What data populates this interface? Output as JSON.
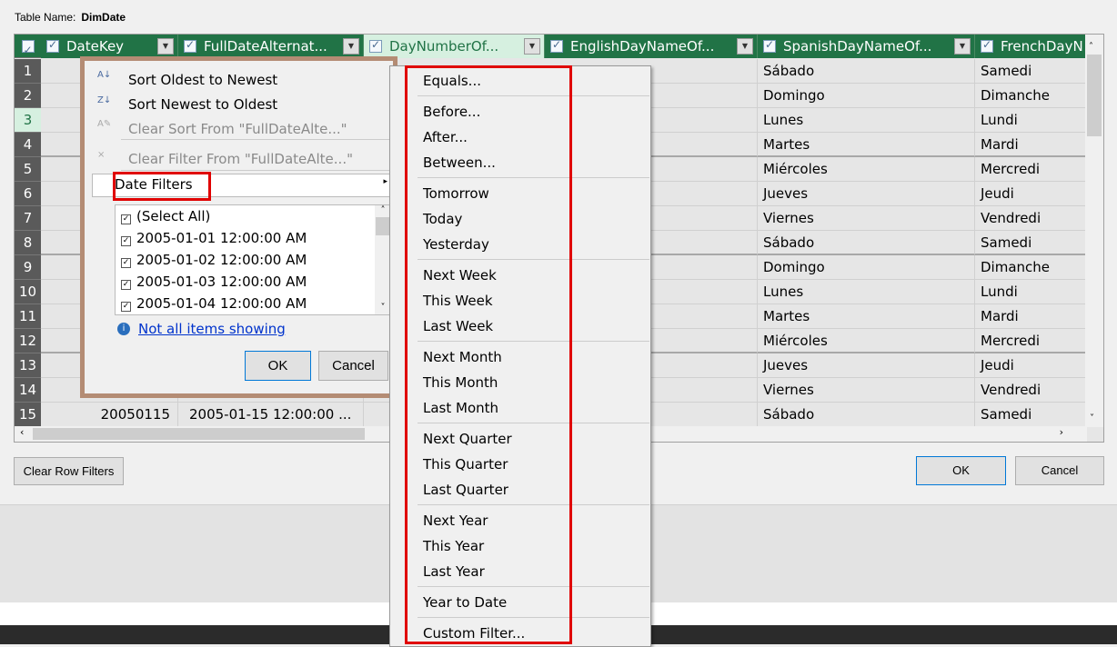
{
  "table_name_label": "Table Name:",
  "table_name": "DimDate",
  "columns": [
    "DateKey",
    "FullDateAlternat...",
    "DayNumberOf...",
    "EnglishDayNameOf...",
    "SpanishDayNameOf...",
    "FrenchDayN"
  ],
  "rows": [
    {
      "n": "1",
      "spanish": "Sábado",
      "french": "Samedi"
    },
    {
      "n": "2",
      "spanish": "Domingo",
      "french": "Dimanche"
    },
    {
      "n": "3",
      "spanish": "Lunes",
      "french": "Lundi"
    },
    {
      "n": "4",
      "spanish": "Martes",
      "french": "Mardi"
    },
    {
      "n": "5",
      "spanish": "Miércoles",
      "french": "Mercredi"
    },
    {
      "n": "6",
      "spanish": "Jueves",
      "french": "Jeudi"
    },
    {
      "n": "7",
      "spanish": "Viernes",
      "french": "Vendredi"
    },
    {
      "n": "8",
      "spanish": "Sábado",
      "french": "Samedi"
    },
    {
      "n": "9",
      "spanish": "Domingo",
      "french": "Dimanche"
    },
    {
      "n": "10",
      "spanish": "Lunes",
      "french": "Lundi"
    },
    {
      "n": "11",
      "spanish": "Martes",
      "french": "Mardi"
    },
    {
      "n": "12",
      "spanish": "Miércoles",
      "french": "Mercredi"
    },
    {
      "n": "13",
      "spanish": "Jueves",
      "french": "Jeudi"
    },
    {
      "n": "14",
      "spanish": "Viernes",
      "french": "Vendredi"
    },
    {
      "n": "15",
      "datekey": "20050115",
      "fulldate": "2005-01-15 12:00:00 ...",
      "spanish": "Sábado",
      "french": "Samedi"
    }
  ],
  "filter": {
    "sort_asc": "Sort Oldest to Newest",
    "sort_desc": "Sort Newest to Oldest",
    "clear_sort": "Clear Sort From \"FullDateAlte...\"",
    "clear_filter": "Clear Filter From \"FullDateAlte...\"",
    "date_filters": "Date Filters",
    "items": [
      "(Select All)",
      "2005-01-01 12:00:00 AM",
      "2005-01-02 12:00:00 AM",
      "2005-01-03 12:00:00 AM",
      "2005-01-04 12:00:00 AM"
    ],
    "not_all": "Not all items showing",
    "ok": "OK",
    "cancel": "Cancel"
  },
  "submenu": [
    [
      "Equals..."
    ],
    [
      "Before...",
      "After...",
      "Between..."
    ],
    [
      "Tomorrow",
      "Today",
      "Yesterday"
    ],
    [
      "Next Week",
      "This Week",
      "Last Week"
    ],
    [
      "Next Month",
      "This Month",
      "Last Month"
    ],
    [
      "Next Quarter",
      "This Quarter",
      "Last Quarter"
    ],
    [
      "Next Year",
      "This Year",
      "Last Year"
    ],
    [
      "Year to Date"
    ],
    [
      "Custom Filter..."
    ]
  ],
  "buttons": {
    "clear_row_filters": "Clear Row Filters",
    "ok": "OK",
    "cancel": "Cancel"
  },
  "colors": {
    "header": "#217346",
    "highlight": "#e00000"
  }
}
